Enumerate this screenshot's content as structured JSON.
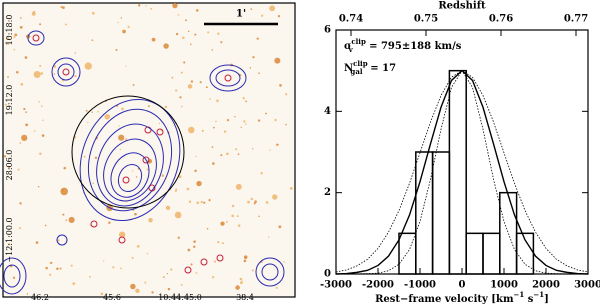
{
  "image_panel": {
    "scale_label": "1'",
    "dec_labels": [
      "10:18:0",
      "19:12.0",
      "28:06.0",
      "−12:1:00.0"
    ],
    "ra_labels": [
      "46.2",
      "45.6",
      "10:44:45.0",
      "38.4"
    ]
  },
  "chart_data": {
    "type": "histogram",
    "top_label": "Redshift",
    "x_label": {
      "text": "Rest−frame velocity [km",
      "sup1": "−1",
      "mid": " s",
      "sup2": "−1",
      "end": "]"
    },
    "annotations": [
      {
        "symbol": "σ",
        "sub": "v",
        "sup": "clip",
        "text": " = 795±188 km/s"
      },
      {
        "symbol": "N",
        "sub": "gal",
        "sup": "clip",
        "text": " = 17"
      }
    ],
    "bins": [
      -1500,
      -1100,
      -700,
      -300,
      100,
      500,
      900,
      1300,
      1700
    ],
    "values": [
      1,
      3,
      3,
      5,
      1,
      1,
      2,
      1
    ],
    "color": "#000000",
    "xlim": [
      -3000,
      3000
    ],
    "xticks": [
      -3000,
      -2000,
      -1000,
      0,
      1000,
      2000,
      3000
    ],
    "ylim": [
      0,
      6
    ],
    "yticks": [
      0,
      2,
      4,
      6
    ],
    "x2lim": [
      0.738,
      0.7716
    ],
    "x2ticks": [
      0.74,
      0.75,
      0.76,
      0.77
    ],
    "curve_x": [
      -3000,
      -2750,
      -2500,
      -2250,
      -2000,
      -1750,
      -1500,
      -1250,
      -1000,
      -750,
      -500,
      -250,
      0,
      250,
      500,
      750,
      1000,
      1250,
      1500,
      1750,
      2000,
      2250,
      2500,
      2750,
      3000
    ],
    "curves": [
      {
        "style": "solid",
        "color": "#000000",
        "values": [
          0.0,
          0.01,
          0.04,
          0.09,
          0.21,
          0.44,
          0.84,
          1.45,
          2.27,
          3.2,
          4.1,
          4.76,
          5,
          4.76,
          4.1,
          3.2,
          2.27,
          1.45,
          0.84,
          0.44,
          0.21,
          0.09,
          0.04,
          0.01,
          0.0
        ]
      },
      {
        "style": "dotted",
        "color": "#000000",
        "values": [
          0,
          0,
          0,
          0.01,
          0.02,
          0.08,
          0.24,
          0.6,
          1.29,
          2.33,
          3.56,
          4.59,
          5,
          4.59,
          3.56,
          2.33,
          1.29,
          0.6,
          0.24,
          0.08,
          0.02,
          0.01,
          0,
          0,
          0
        ]
      },
      {
        "style": "dotted",
        "color": "#000000",
        "values": [
          0.05,
          0.1,
          0.2,
          0.36,
          0.63,
          1.03,
          1.56,
          2.23,
          2.98,
          3.74,
          4.39,
          4.84,
          5,
          4.84,
          4.39,
          3.74,
          2.98,
          2.23,
          1.56,
          1.03,
          0.63,
          0.36,
          0.2,
          0.1,
          0.05
        ]
      }
    ]
  }
}
